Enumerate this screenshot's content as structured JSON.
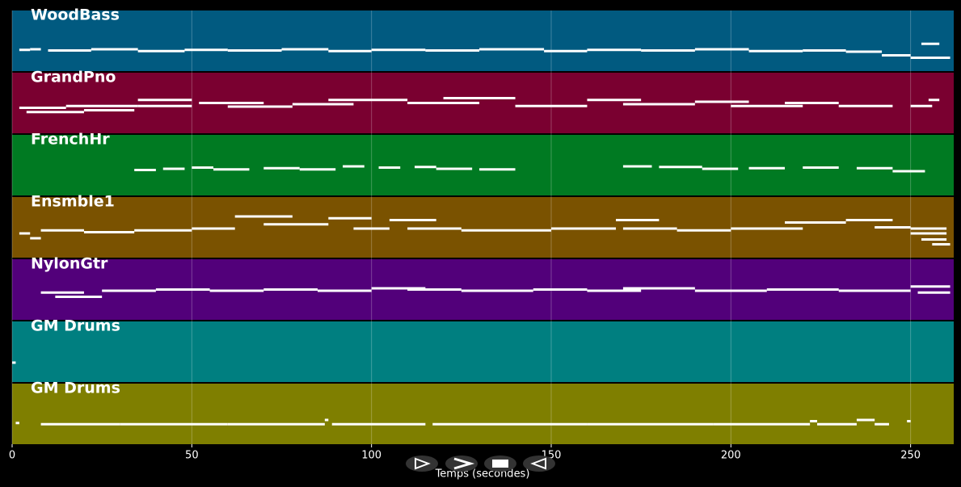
{
  "chart_data": {
    "type": "pianoroll",
    "xlabel": "Temps (secondes)",
    "xlim": [
      0,
      262
    ],
    "xticks": [
      0,
      50,
      100,
      150,
      200,
      250
    ],
    "ylim": [
      0,
      100
    ],
    "grid": true,
    "note_color": "#ffffff",
    "tracks": [
      {
        "name": "WoodBass",
        "color": "#015a80",
        "notes": [
          [
            2,
            5,
            35
          ],
          [
            5,
            8,
            36
          ],
          [
            10,
            22,
            34
          ],
          [
            22,
            35,
            36
          ],
          [
            35,
            48,
            33
          ],
          [
            48,
            60,
            35
          ],
          [
            60,
            75,
            34
          ],
          [
            75,
            88,
            36
          ],
          [
            88,
            100,
            33
          ],
          [
            100,
            115,
            35
          ],
          [
            115,
            130,
            34
          ],
          [
            130,
            148,
            36
          ],
          [
            148,
            160,
            33
          ],
          [
            160,
            175,
            35
          ],
          [
            175,
            190,
            34
          ],
          [
            190,
            205,
            36
          ],
          [
            205,
            220,
            33
          ],
          [
            220,
            232,
            34
          ],
          [
            232,
            242,
            32
          ],
          [
            242,
            250,
            26
          ],
          [
            250,
            261,
            22
          ],
          [
            253,
            258,
            45
          ]
        ]
      },
      {
        "name": "GrandPno",
        "color": "#7a0030",
        "notes": [
          [
            2,
            15,
            42
          ],
          [
            4,
            20,
            35
          ],
          [
            15,
            35,
            45
          ],
          [
            20,
            34,
            38
          ],
          [
            35,
            50,
            55
          ],
          [
            35,
            50,
            45
          ],
          [
            52,
            70,
            50
          ],
          [
            60,
            78,
            44
          ],
          [
            78,
            95,
            48
          ],
          [
            88,
            110,
            55
          ],
          [
            110,
            130,
            50
          ],
          [
            120,
            140,
            58
          ],
          [
            140,
            160,
            45
          ],
          [
            160,
            175,
            55
          ],
          [
            170,
            190,
            48
          ],
          [
            190,
            205,
            52
          ],
          [
            200,
            220,
            45
          ],
          [
            215,
            230,
            50
          ],
          [
            230,
            245,
            45
          ],
          [
            250,
            256,
            45
          ],
          [
            255,
            258,
            55
          ]
        ]
      },
      {
        "name": "FrenchHr",
        "color": "#007a22",
        "notes": [
          [
            34,
            40,
            42
          ],
          [
            42,
            48,
            44
          ],
          [
            50,
            56,
            46
          ],
          [
            56,
            66,
            43
          ],
          [
            70,
            80,
            45
          ],
          [
            80,
            90,
            43
          ],
          [
            92,
            98,
            48
          ],
          [
            102,
            108,
            46
          ],
          [
            112,
            118,
            47
          ],
          [
            118,
            128,
            44
          ],
          [
            130,
            140,
            43
          ],
          [
            170,
            178,
            48
          ],
          [
            180,
            192,
            47
          ],
          [
            192,
            202,
            44
          ],
          [
            205,
            215,
            45
          ],
          [
            220,
            230,
            46
          ],
          [
            235,
            245,
            45
          ],
          [
            245,
            254,
            40
          ]
        ]
      },
      {
        "name": "Ensmble1",
        "color": "#7a5200",
        "notes": [
          [
            2,
            5,
            40
          ],
          [
            5,
            8,
            32
          ],
          [
            8,
            20,
            45
          ],
          [
            20,
            34,
            42
          ],
          [
            34,
            50,
            45
          ],
          [
            50,
            62,
            48
          ],
          [
            62,
            78,
            68
          ],
          [
            70,
            88,
            55
          ],
          [
            88,
            100,
            65
          ],
          [
            95,
            105,
            48
          ],
          [
            105,
            118,
            62
          ],
          [
            110,
            125,
            48
          ],
          [
            125,
            150,
            45
          ],
          [
            150,
            168,
            48
          ],
          [
            168,
            180,
            62
          ],
          [
            170,
            185,
            48
          ],
          [
            185,
            200,
            45
          ],
          [
            200,
            220,
            48
          ],
          [
            215,
            232,
            58
          ],
          [
            232,
            245,
            62
          ],
          [
            240,
            250,
            50
          ],
          [
            250,
            260,
            48
          ],
          [
            250,
            260,
            40
          ],
          [
            253,
            260,
            30
          ],
          [
            256,
            261,
            22
          ]
        ]
      },
      {
        "name": "NylonGtr",
        "color": "#52007a",
        "notes": [
          [
            8,
            20,
            45
          ],
          [
            12,
            25,
            38
          ],
          [
            25,
            40,
            48
          ],
          [
            40,
            55,
            50
          ],
          [
            55,
            70,
            48
          ],
          [
            70,
            85,
            50
          ],
          [
            85,
            100,
            48
          ],
          [
            100,
            115,
            52
          ],
          [
            110,
            125,
            50
          ],
          [
            125,
            145,
            48
          ],
          [
            145,
            160,
            50
          ],
          [
            160,
            175,
            48
          ],
          [
            170,
            190,
            52
          ],
          [
            190,
            210,
            48
          ],
          [
            210,
            230,
            50
          ],
          [
            230,
            250,
            48
          ],
          [
            250,
            261,
            55
          ],
          [
            252,
            261,
            45
          ]
        ]
      },
      {
        "name": "GM Drums",
        "color": "#007f80",
        "notes": [
          [
            0,
            1,
            32
          ]
        ]
      },
      {
        "name": "GM Drums",
        "color": "#7f7f00",
        "notes": [
          [
            1,
            2,
            35
          ],
          [
            8,
            30,
            33
          ],
          [
            30,
            60,
            33
          ],
          [
            60,
            87,
            33
          ],
          [
            87,
            88,
            40
          ],
          [
            89,
            115,
            33
          ],
          [
            117,
            160,
            33
          ],
          [
            160,
            195,
            33
          ],
          [
            195,
            222,
            33
          ],
          [
            222,
            224,
            38
          ],
          [
            224,
            235,
            33
          ],
          [
            235,
            240,
            40
          ],
          [
            240,
            244,
            33
          ],
          [
            249,
            250,
            38
          ]
        ]
      }
    ]
  }
}
